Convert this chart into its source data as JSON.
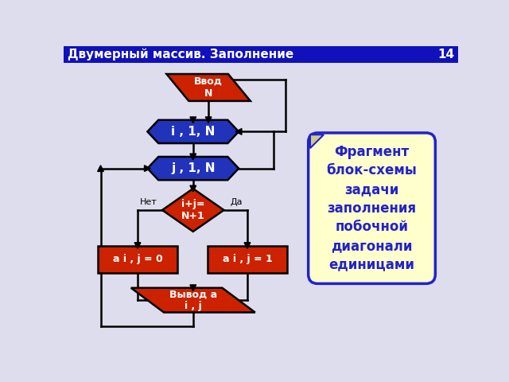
{
  "title": "Двумерный массив. Заполнение",
  "slide_num": "14",
  "title_bg": "#1111BB",
  "title_fg": "#FFFFFF",
  "bg_color": "#DDDDEE",
  "note_text": "Фрагмент\nблок-схемы\nзадачи\nзаполнения\nпобочной\nдиагонали\nединицами",
  "note_bg": "#FFFFCC",
  "note_fg": "#2222CC",
  "red_color": "#CC2200",
  "blue_color": "#2233BB",
  "lw": 1.8
}
